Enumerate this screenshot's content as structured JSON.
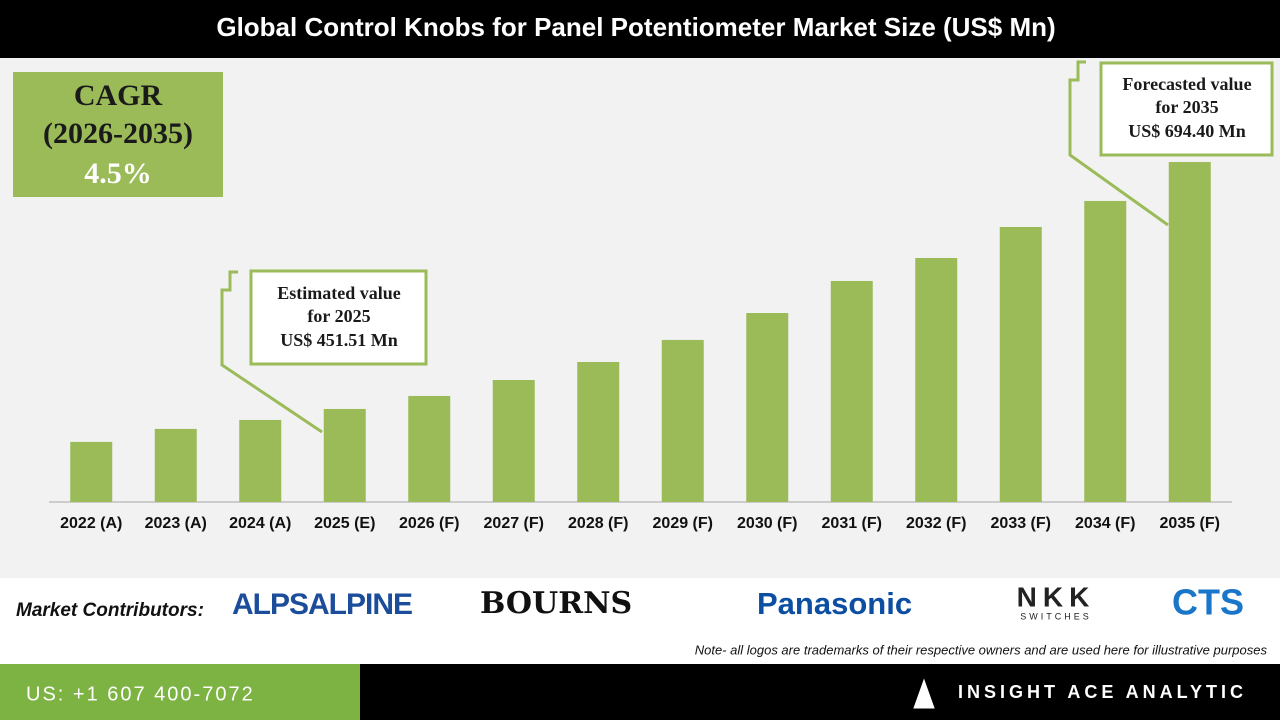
{
  "chart_data": {
    "type": "bar",
    "title": "Global Control Knobs for Panel Potentiometer Market Size (US$ Mn)",
    "categories": [
      "2022 (A)",
      "2023 (A)",
      "2024 (A)",
      "2025 (E)",
      "2026 (F)",
      "2027 (F)",
      "2028 (F)",
      "2029 (F)",
      "2030 (F)",
      "2031 (F)",
      "2032 (F)",
      "2033 (F)",
      "2034 (F)",
      "2035 (F)"
    ],
    "values": [
      419.1,
      431.9,
      440.7,
      451.51,
      464.3,
      480.0,
      497.7,
      519.4,
      545.9,
      577.4,
      600.0,
      630.5,
      656.1,
      694.4
    ],
    "color": "#9bbb59",
    "ylim": [
      360,
      720
    ],
    "cagr": [
      "CAGR",
      "(2026-2035)",
      "4.5%"
    ],
    "annotations": [
      [
        "Estimated value",
        "for 2025",
        "US$ 451.51 Mn"
      ],
      [
        "Forecasted value",
        "for 2035",
        "US$ 694.40 Mn"
      ]
    ]
  },
  "contributors": {
    "label": "Market Contributors:",
    "logos": [
      "ALPSALPINE",
      "BOURNS",
      "Panasonic",
      "NKK",
      "CTS"
    ],
    "logo_subtext": "SWITCHES",
    "note": "Note- all logos are trademarks of their respective owners and are used here for illustrative purposes"
  },
  "footer": {
    "phone": "US: +1 607 400-7072",
    "company": "INSIGHT ACE ANALYTIC"
  }
}
